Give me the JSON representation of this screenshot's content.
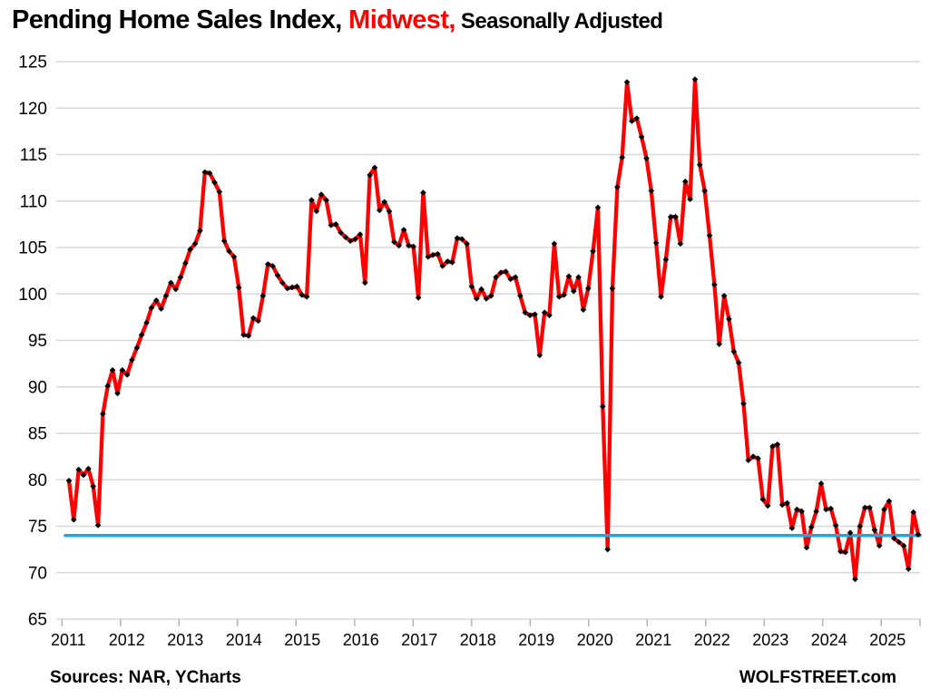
{
  "title": {
    "prefix": "Pending Home Sales Index, ",
    "region": "Midwest,",
    "suffix": " Seasonally Adjusted"
  },
  "footer": {
    "sources": "Sources: NAR, YCharts",
    "site": "WOLFSTREET.com"
  },
  "chart_data": {
    "type": "line",
    "title": "Pending Home Sales Index, Midwest, Seasonally Adjusted",
    "xlabel": "",
    "ylabel": "",
    "frequency": "monthly",
    "x_start": "2011-01",
    "x_end": "2025-08",
    "ylim": [
      65,
      125
    ],
    "y_ticks": [
      65,
      70,
      75,
      80,
      85,
      90,
      95,
      100,
      105,
      110,
      115,
      120,
      125
    ],
    "x_tick_years": [
      "2011",
      "2012",
      "2013",
      "2014",
      "2015",
      "2016",
      "2017",
      "2018",
      "2019",
      "2020",
      "2021",
      "2022",
      "2023",
      "2024",
      "2025"
    ],
    "grid": true,
    "legend": "none",
    "reference_line": {
      "value": 74.0,
      "color": "#1ba8e2",
      "description": "horizontal reference line at latest index level"
    },
    "colors": {
      "line": "#ff0000",
      "marker": "#000000",
      "grid": "#d8d8d8",
      "tick": "#b0b0b0",
      "text": "#000000"
    },
    "series": [
      {
        "name": "Pending Home Sales Index, Midwest (seasonally adjusted)",
        "marker_shape": "diamond",
        "values_by_year": [
          {
            "year": 2011,
            "values": [
              79.9,
              75.7,
              81.1,
              80.5,
              81.2,
              79.3,
              75.1,
              87.1,
              90.1,
              91.8,
              89.3,
              91.8
            ]
          },
          {
            "year": 2012,
            "values": [
              91.3,
              92.9,
              94.2,
              95.6,
              96.9,
              98.5,
              99.3,
              98.4,
              99.8,
              101.2,
              100.5,
              101.8
            ]
          },
          {
            "year": 2013,
            "values": [
              103.3,
              104.8,
              105.4,
              106.8,
              113.1,
              113.0,
              112.0,
              111.0,
              105.7,
              104.6,
              104.0,
              100.7
            ]
          },
          {
            "year": 2014,
            "values": [
              95.6,
              95.5,
              97.4,
              97.1,
              99.8,
              103.2,
              103.0,
              102.0,
              101.2,
              100.6,
              100.7,
              100.8
            ]
          },
          {
            "year": 2015,
            "values": [
              99.9,
              99.7,
              110.1,
              108.9,
              110.7,
              110.1,
              107.4,
              107.5,
              106.6,
              106.1,
              105.7,
              105.9
            ]
          },
          {
            "year": 2016,
            "values": [
              106.4,
              101.2,
              112.8,
              113.6,
              109.0,
              109.9,
              108.9,
              105.6,
              105.2,
              106.9,
              105.2,
              105.1
            ]
          },
          {
            "year": 2017,
            "values": [
              99.6,
              110.9,
              104.0,
              104.2,
              104.3,
              103.0,
              103.5,
              103.4,
              106.0,
              105.9,
              105.4,
              100.8
            ]
          },
          {
            "year": 2018,
            "values": [
              99.5,
              100.5,
              99.5,
              99.8,
              101.8,
              102.3,
              102.4,
              101.6,
              101.8,
              99.8,
              98.0,
              97.7
            ]
          },
          {
            "year": 2019,
            "values": [
              97.8,
              93.4,
              98.0,
              97.7,
              105.4,
              99.7,
              99.9,
              101.9,
              100.3,
              101.8,
              98.3,
              100.6
            ]
          },
          {
            "year": 2020,
            "values": [
              104.6,
              109.3,
              87.9,
              72.5,
              100.6,
              111.5,
              114.7,
              122.8,
              118.6,
              118.9,
              116.9,
              114.6
            ]
          },
          {
            "year": 2021,
            "values": [
              111.1,
              105.5,
              99.7,
              103.7,
              108.3,
              108.3,
              105.4,
              112.1,
              110.2,
              123.1,
              113.9,
              111.1
            ]
          },
          {
            "year": 2022,
            "values": [
              106.3,
              101.0,
              94.6,
              99.8,
              97.3,
              93.8,
              92.6,
              88.2,
              82.1,
              82.5,
              82.3,
              77.9
            ]
          },
          {
            "year": 2023,
            "values": [
              77.2,
              83.6,
              83.8,
              77.3,
              77.5,
              74.8,
              76.8,
              76.6,
              72.7,
              74.9,
              76.6,
              79.6
            ]
          },
          {
            "year": 2024,
            "values": [
              76.8,
              76.9,
              75.1,
              72.3,
              72.2,
              74.3,
              69.3,
              75.0,
              77.0,
              77.0,
              74.6,
              72.9
            ]
          },
          {
            "year": 2025,
            "values": [
              76.8,
              77.7,
              73.7,
              73.3,
              72.9,
              70.4,
              76.5,
              74.1
            ]
          }
        ]
      }
    ]
  }
}
